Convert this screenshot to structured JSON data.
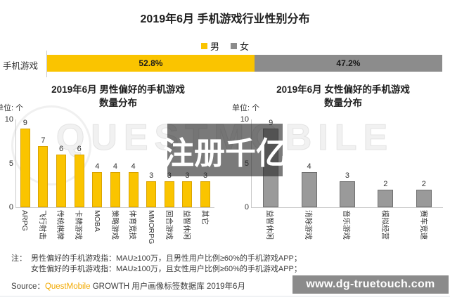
{
  "page": {
    "main_title": "2019年6月 手机游戏行业性别分布",
    "legend": [
      {
        "label": "男",
        "color": "#FAC400"
      },
      {
        "label": "女",
        "color": "#8C8C8C"
      }
    ],
    "background_watermark": "QUESTMOBILE",
    "overlay_watermark": "注册千亿",
    "notes": {
      "prefix": "注：",
      "lines": [
        "男性偏好的手机游戏指：MAU≥100万，且男性用户比例≥60%的手机游戏APP；",
        "女性偏好的手机游戏指：MAU≥100万，且女性用户比例≥60%的手机游戏APP；"
      ]
    },
    "source": {
      "prefix": "Source：",
      "brand": "QuestMobile",
      "rest": " GROWTH 用户画像标签数据库 2019年6月"
    },
    "site_url": "www.dg-truetouch.com"
  },
  "chart_data": [
    {
      "id": "gender-split",
      "type": "bar",
      "subtype": "horizontal-stacked",
      "category": "手机游戏",
      "series": [
        {
          "name": "男",
          "value": 52.8,
          "label": "52.8%",
          "color": "#FAC400"
        },
        {
          "name": "女",
          "value": 47.2,
          "label": "47.2%",
          "color": "#8C8C8C"
        }
      ],
      "xlim": [
        0,
        100
      ],
      "legend_position": "top-center"
    },
    {
      "id": "male-preferred-games",
      "type": "bar",
      "title_line1": "2019年6月 男性偏好的手机游戏",
      "title_line2": "数量分布",
      "unit_label": "单位: 个",
      "ylim": [
        0,
        10
      ],
      "yticks": [
        10,
        5,
        0
      ],
      "grid": false,
      "bar_color": "#FAC400",
      "bar_border": "#D9A300",
      "categories": [
        "ARPG",
        "飞行射击",
        "传统棋牌",
        "卡牌游戏",
        "MOBA",
        "策略游戏",
        "体育竞技",
        "MMORPG",
        "回合游戏",
        "益智休闲",
        "其它"
      ],
      "values": [
        9,
        7,
        6,
        6,
        4,
        4,
        4,
        3,
        3,
        3,
        3
      ]
    },
    {
      "id": "female-preferred-games",
      "type": "bar",
      "title_line1": "2019年6月 女性偏好的手机游戏",
      "title_line2": "数量分布",
      "unit_label": "单位: 个",
      "ylim": [
        0,
        10
      ],
      "yticks": [
        10,
        5,
        0
      ],
      "grid": false,
      "bar_color": "#9A9A9A",
      "bar_border": "#6F6F6F",
      "categories": [
        "益智休闲",
        "消除游戏",
        "音乐游戏",
        "模拟经营",
        "赛车竞速"
      ],
      "values": [
        9,
        4,
        3,
        2,
        2
      ]
    }
  ]
}
